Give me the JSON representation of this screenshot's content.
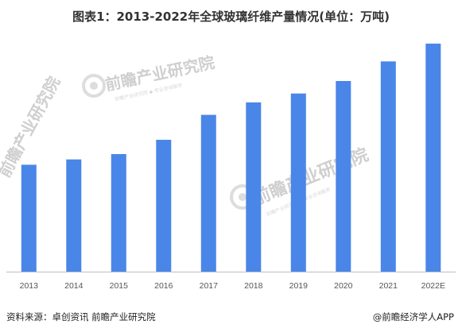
{
  "title": "图表1：2013-2022年全球玻璃纤维产量情况(单位：万吨)",
  "chart_data": {
    "type": "bar",
    "title": "图表1：2013-2022年全球玻璃纤维产量情况(单位：万吨)",
    "categories": [
      "2013",
      "2014",
      "2015",
      "2016",
      "2017",
      "2018",
      "2019",
      "2020",
      "2021",
      "2022E"
    ],
    "values": [
      600,
      630,
      660,
      740,
      880,
      950,
      1000,
      1070,
      1180,
      1280
    ],
    "ylim": [
      0,
      1400
    ],
    "grid": false,
    "legend": "none",
    "bar_color": "#4a86e8",
    "axis_color": "#bfbfbf"
  },
  "watermark": {
    "text": "前瞻产业研究院",
    "subtext": "前瞻产业研究院 ◆ 专业咨询服务"
  },
  "footer": {
    "source": "资料来源：卓创资讯 前瞻产业研究院",
    "brand": "@前瞻经济学人APP"
  }
}
